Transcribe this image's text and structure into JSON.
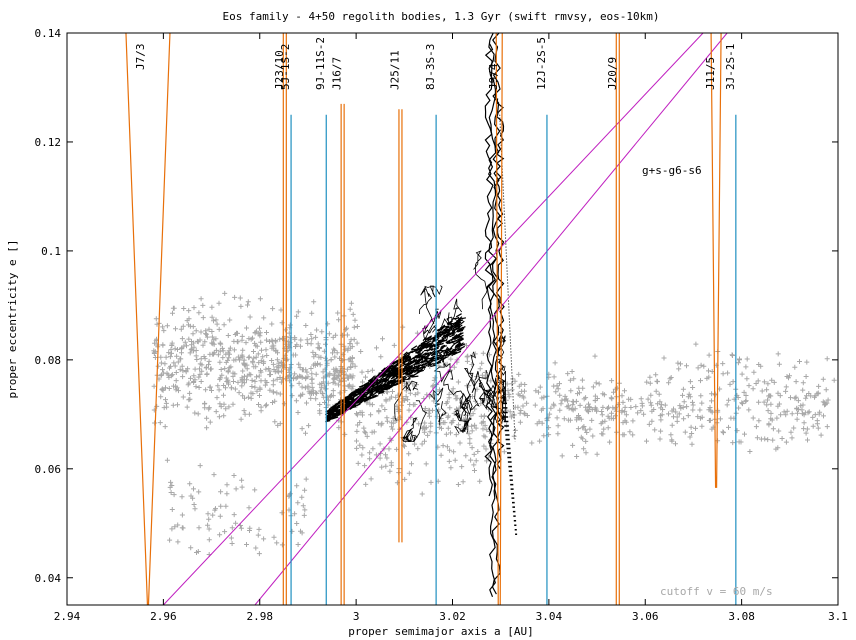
{
  "chart_data": {
    "type": "scatter",
    "title": "Eos family - 4+50 regolith bodies, 1.3 Gyr (swift rmvsy, eos-10km)",
    "xlabel": "proper semimajor axis a [AU]",
    "ylabel": "proper eccentricity e []",
    "xlim": [
      2.94,
      3.1
    ],
    "ylim": [
      0.035,
      0.14
    ],
    "grid": false,
    "xticks": [
      "2.94",
      "2.96",
      "2.98",
      "3",
      "3.02",
      "3.04",
      "3.06",
      "3.08",
      "3.1"
    ],
    "yticks": [
      "0.04",
      "0.06",
      "0.08",
      "0.1",
      "0.12",
      "0.14"
    ],
    "annotation": "cutoff v = 60 m/s",
    "colors": {
      "family": "#a8a8a8",
      "tracks": "#000000",
      "mean_motion": "#e8700a",
      "three_body": "#1f8fc0",
      "secular": "#c020c0"
    },
    "resonances": [
      {
        "label": "J7/3",
        "a": 2.9568,
        "kind": "mean_motion"
      },
      {
        "label": "J23/10",
        "a": 2.9852,
        "kind": "mean_motion"
      },
      {
        "label": "5J-1S-2",
        "a": 2.9865,
        "kind": "three_body"
      },
      {
        "label": "9J-11S-2",
        "a": 2.9938,
        "kind": "three_body"
      },
      {
        "label": "J16/7",
        "a": 2.9972,
        "kind": "mean_motion"
      },
      {
        "label": "J25/11",
        "a": 3.0092,
        "kind": "mean_motion"
      },
      {
        "label": "8J-3S-3",
        "a": 3.0166,
        "kind": "three_body"
      },
      {
        "label": "J9/4",
        "a": 3.0297,
        "kind": "mean_motion"
      },
      {
        "label": "12J-2S-5",
        "a": 3.0396,
        "kind": "three_body"
      },
      {
        "label": "J20/9",
        "a": 3.0543,
        "kind": "mean_motion"
      },
      {
        "label": "J11/5",
        "a": 3.0747,
        "kind": "mean_motion"
      },
      {
        "label": "3J-2S-1",
        "a": 3.0788,
        "kind": "three_body"
      }
    ],
    "secular_resonance": {
      "label": "g+s-g6-s6",
      "lines": [
        {
          "x": [
            2.96,
            3.072
          ],
          "y": [
            0.035,
            0.14
          ]
        },
        {
          "x": [
            2.979,
            3.077
          ],
          "y": [
            0.035,
            0.14
          ]
        }
      ]
    },
    "family_clouds": [
      {
        "x_range": [
          2.958,
          3.0
        ],
        "e_center": 0.079,
        "e_spread": 0.009,
        "count": 700
      },
      {
        "x_range": [
          2.96,
          2.99
        ],
        "e_center": 0.052,
        "e_spread": 0.007,
        "count": 90
      },
      {
        "x_range": [
          3.0,
          3.028
        ],
        "e_center": 0.071,
        "e_spread": 0.012,
        "count": 350
      },
      {
        "x_range": [
          3.03,
          3.098
        ],
        "e_center": 0.071,
        "e_spread": 0.006,
        "count": 450
      },
      {
        "x_range": [
          3.06,
          3.1
        ],
        "e_center": 0.078,
        "e_spread": 0.004,
        "count": 40
      }
    ],
    "tracks": {
      "band": {
        "x": [
          2.9936,
          3.0215
        ],
        "e_low": [
          0.0685,
          0.0815
        ],
        "e_high": [
          0.0705,
          0.0885
        ]
      },
      "vertical_columns": [
        {
          "x": 3.0283,
          "e_range": [
            0.0365,
            0.14
          ]
        },
        {
          "x": 3.0291,
          "e_range": [
            0.037,
            0.14
          ]
        },
        {
          "x": 3.0276,
          "e_range": [
            0.055,
            0.138
          ]
        },
        {
          "x": 3.0299,
          "e_range": [
            0.06,
            0.128
          ]
        }
      ],
      "scribble_region": {
        "x_range": [
          3.008,
          3.031
        ],
        "e_range": [
          0.065,
          0.1
        ]
      },
      "tail": {
        "x": [
          3.0308,
          3.0332
        ],
        "e": [
          0.072,
          0.048
        ]
      },
      "dotted_edge": {
        "x": [
          3.0298,
          3.033
        ],
        "e": [
          0.125,
          0.065
        ]
      }
    }
  }
}
